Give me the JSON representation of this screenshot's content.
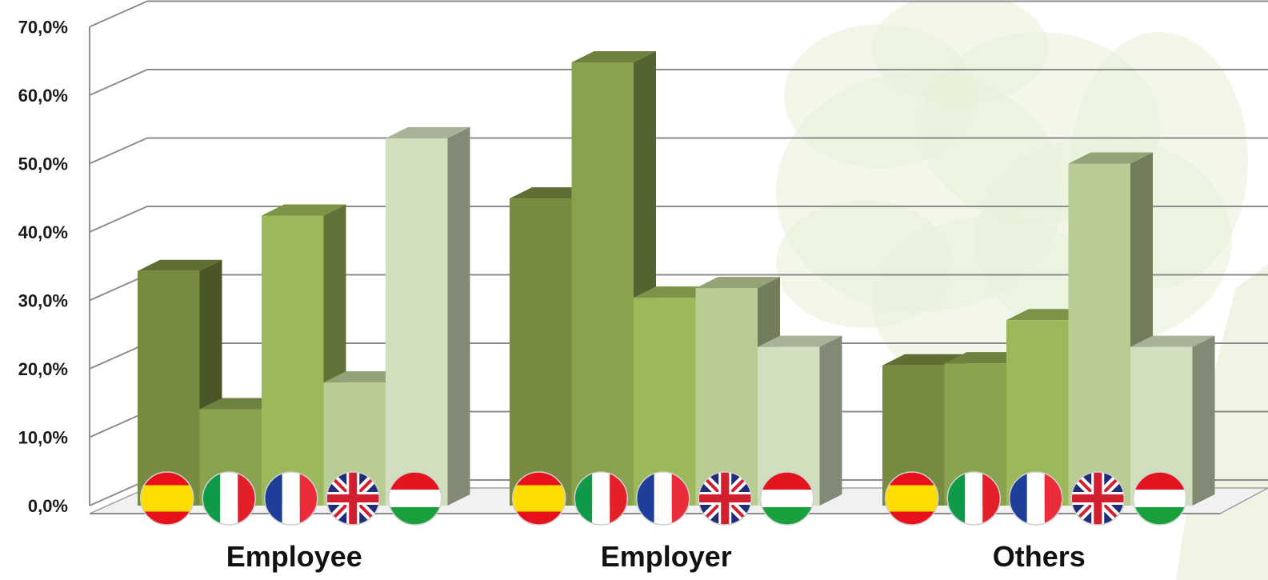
{
  "chart_data": {
    "type": "bar",
    "title": "",
    "xlabel": "",
    "ylabel": "",
    "ylim": [
      0,
      70
    ],
    "yticks": [
      "0,0%",
      "10,0%",
      "20,0%",
      "30,0%",
      "40,0%",
      "50,0%",
      "60,0%",
      "70,0%"
    ],
    "grid": true,
    "style": "3d-column",
    "categories": [
      "Employee",
      "Employer",
      "Others"
    ],
    "series": [
      {
        "flag": "spain-flag-icon",
        "color": "#778b40",
        "values": [
          34.3,
          44.9,
          20.5
        ]
      },
      {
        "flag": "italy-flag-icon",
        "color": "#88a24d",
        "values": [
          14.1,
          64.8,
          20.8
        ]
      },
      {
        "flag": "france-flag-icon",
        "color": "#9bb85a",
        "values": [
          42.4,
          30.4,
          27.1
        ]
      },
      {
        "flag": "uk-flag-icon",
        "color": "#b8cc93",
        "values": [
          18.0,
          31.8,
          50.0
        ]
      },
      {
        "flag": "hungary-flag-icon",
        "color": "#d2dfbf",
        "values": [
          53.7,
          23.2,
          23.2
        ]
      }
    ]
  }
}
